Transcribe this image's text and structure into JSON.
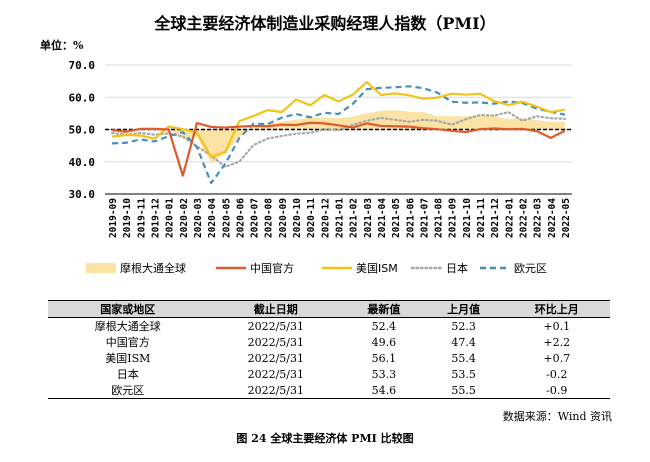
{
  "title": "全球主要经济体制造业采购经理人指数（PMI）",
  "unit_label": "单位：%",
  "chart_data": {
    "type": "line",
    "x": [
      "2019-09",
      "2019-10",
      "2019-11",
      "2019-12",
      "2020-01",
      "2020-02",
      "2020-03",
      "2020-04",
      "2020-05",
      "2020-06",
      "2020-07",
      "2020-08",
      "2020-09",
      "2020-10",
      "2020-11",
      "2020-12",
      "2021-01",
      "2021-02",
      "2021-03",
      "2021-04",
      "2021-05",
      "2021-06",
      "2021-07",
      "2021-08",
      "2021-09",
      "2021-10",
      "2021-11",
      "2021-12",
      "2022-01",
      "2022-02",
      "2022-03",
      "2022-04",
      "2022-05"
    ],
    "ylim": [
      30,
      70
    ],
    "yticks": [
      "30.0",
      "40.0",
      "50.0",
      "60.0",
      "70.0"
    ],
    "reference_line": 50,
    "legend_position": "bottom",
    "series": [
      {
        "name": "摩根大通全球",
        "style": "area",
        "color": "#fbe3a6",
        "values": [
          49.7,
          49.8,
          50.3,
          50.1,
          50.4,
          47.1,
          47.6,
          39.6,
          42.4,
          47.8,
          50.6,
          51.8,
          52.4,
          53.0,
          53.8,
          53.8,
          53.5,
          54.0,
          55.0,
          55.8,
          56.0,
          55.5,
          55.4,
          54.1,
          54.1,
          54.2,
          54.2,
          54.2,
          53.2,
          53.6,
          52.9,
          52.3,
          52.4
        ]
      },
      {
        "name": "中国官方",
        "style": "solid",
        "color": "#e05a2b",
        "values": [
          49.8,
          49.3,
          50.2,
          50.2,
          50.0,
          35.7,
          52.0,
          50.8,
          50.6,
          50.9,
          51.1,
          51.0,
          51.5,
          51.4,
          52.1,
          51.9,
          51.3,
          50.6,
          51.9,
          51.1,
          51.0,
          50.9,
          50.4,
          50.1,
          49.6,
          49.2,
          50.1,
          50.3,
          50.1,
          50.2,
          49.5,
          47.4,
          49.6
        ]
      },
      {
        "name": "美国ISM",
        "style": "solid",
        "color": "#f2c318",
        "values": [
          47.8,
          48.3,
          48.1,
          47.2,
          50.9,
          50.1,
          49.1,
          41.5,
          43.1,
          52.6,
          54.2,
          56.0,
          55.4,
          59.3,
          57.5,
          60.7,
          58.7,
          60.8,
          64.7,
          60.7,
          61.2,
          60.6,
          59.5,
          59.9,
          61.1,
          60.8,
          61.1,
          58.8,
          57.6,
          58.6,
          57.1,
          55.4,
          56.1
        ]
      },
      {
        "name": "日本",
        "style": "dotted",
        "color": "#a6a6a6",
        "values": [
          48.9,
          48.4,
          48.9,
          48.4,
          48.8,
          47.8,
          44.8,
          41.9,
          38.4,
          40.1,
          45.2,
          47.2,
          48.0,
          48.7,
          49.0,
          50.0,
          49.8,
          51.4,
          52.7,
          53.6,
          53.0,
          52.4,
          53.0,
          52.7,
          51.5,
          53.2,
          54.5,
          54.3,
          55.4,
          52.7,
          54.1,
          53.5,
          53.3
        ]
      },
      {
        "name": "欧元区",
        "style": "dashed",
        "color": "#4a8fb8",
        "values": [
          45.7,
          45.9,
          46.9,
          46.3,
          47.9,
          49.2,
          44.5,
          33.4,
          39.4,
          47.4,
          51.8,
          51.7,
          53.7,
          54.8,
          53.8,
          55.2,
          54.8,
          57.9,
          62.5,
          62.9,
          63.1,
          63.4,
          62.8,
          61.4,
          58.6,
          58.3,
          58.4,
          58.0,
          58.7,
          58.2,
          56.5,
          55.5,
          54.6
        ]
      }
    ]
  },
  "table": {
    "headers": [
      "国家或地区",
      "截止日期",
      "最新值",
      "上月值",
      "环比上月"
    ],
    "rows": [
      [
        "摩根大通全球",
        "2022/5/31",
        "52.4",
        "52.3",
        "+0.1"
      ],
      [
        "中国官方",
        "2022/5/31",
        "49.6",
        "47.4",
        "+2.2"
      ],
      [
        "美国ISM",
        "2022/5/31",
        "56.1",
        "55.4",
        "+0.7"
      ],
      [
        "日本",
        "2022/5/31",
        "53.3",
        "53.5",
        "-0.2"
      ],
      [
        "欧元区",
        "2022/5/31",
        "54.6",
        "55.5",
        "-0.9"
      ]
    ]
  },
  "source": "数据来源：Wind 资讯",
  "caption": "图 24   全球主要经济体 PMI 比较图"
}
